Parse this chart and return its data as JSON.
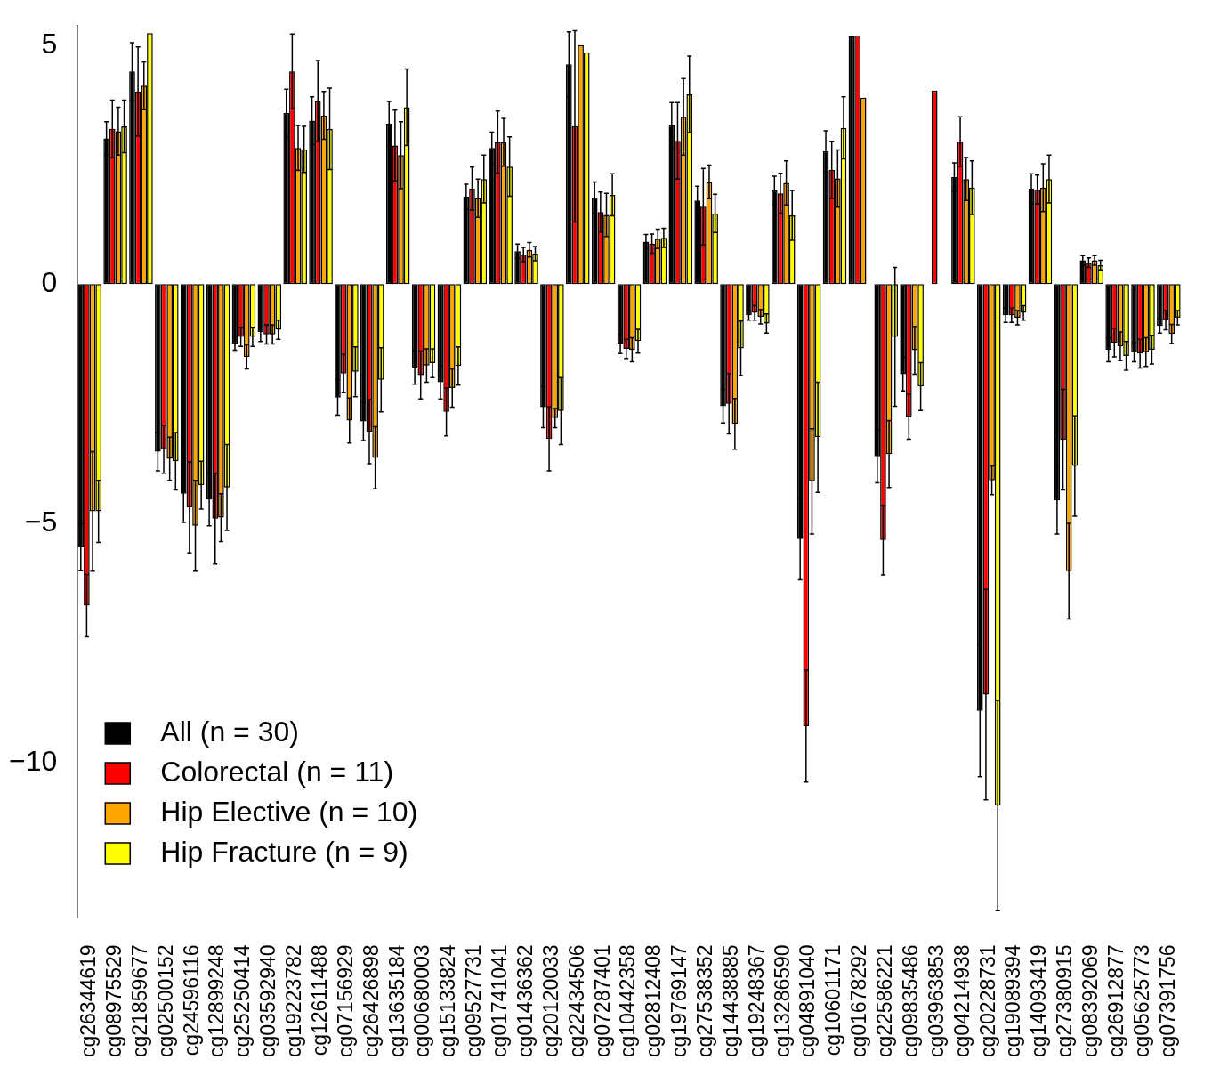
{
  "chart_data": {
    "type": "bar",
    "categories": [
      "cg26344619",
      "cg08975529",
      "cg21859677",
      "cg02500152",
      "cg24596116",
      "cg12899248",
      "cg25250414",
      "cg03592940",
      "cg19223782",
      "cg12611488",
      "cg07156929",
      "cg26426898",
      "cg13635184",
      "cg00680003",
      "cg15133824",
      "cg09527731",
      "cg01741041",
      "cg01436362",
      "cg20120033",
      "cg22434506",
      "cg07287401",
      "cg10442358",
      "cg02812408",
      "cg19769147",
      "cg27538352",
      "cg14438885",
      "cg19248367",
      "cg13286590",
      "cg04891040",
      "cg10601171",
      "cg01678292",
      "cg22586221",
      "cg09835486",
      "cg03963853",
      "cg04214938",
      "cg20228731",
      "cg19089394",
      "cg14093419",
      "cg27380915",
      "cg08392069",
      "cg26912877",
      "cg05625773",
      "cg07391756"
    ],
    "series": [
      {
        "name": "All (n = 30)",
        "color": "#000000",
        "values": [
          -5.5,
          3.05,
          4.45,
          -3.5,
          -4.38,
          -4.5,
          -1.24,
          -1.0,
          3.58,
          3.42,
          -2.37,
          -2.87,
          3.36,
          -1.74,
          -2.05,
          1.83,
          2.85,
          0.69,
          -2.57,
          4.6,
          1.81,
          -1.25,
          0.89,
          3.32,
          1.75,
          -2.55,
          -0.65,
          1.96,
          -5.33,
          2.78,
          5.19,
          -3.6,
          -1.88,
          null,
          2.24,
          -8.92,
          -0.65,
          2.0,
          -4.52,
          0.5,
          -1.37,
          -1.42,
          -0.87
        ],
        "errors": [
          0.49,
          0.35,
          0.6,
          0.4,
          0.6,
          0.55,
          0.14,
          0.2,
          0.5,
          0.5,
          0.37,
          0.4,
          0.46,
          0.35,
          0.35,
          0.26,
          0.33,
          0.15,
          0.43,
          0.68,
          0.33,
          0.2,
          0.15,
          0.48,
          0.3,
          0.35,
          0.1,
          0.3,
          0.85,
          0.43,
          null,
          0.55,
          0.35,
          null,
          0.3,
          1.38,
          0.15,
          0.31,
          0.7,
          0.1,
          0.25,
          0.2,
          0.15
        ]
      },
      {
        "name": "Colorectal (n = 11)",
        "color": "#ff0000",
        "values": [
          -6.72,
          3.25,
          4.03,
          -3.45,
          -4.67,
          -4.9,
          -1.1,
          -1.05,
          4.45,
          3.83,
          -1.87,
          -3.08,
          2.9,
          -1.9,
          -2.67,
          2.0,
          2.97,
          0.62,
          -3.23,
          3.3,
          1.51,
          -1.35,
          0.85,
          3.0,
          1.62,
          -2.5,
          -0.6,
          1.9,
          -9.24,
          2.39,
          5.2,
          -5.35,
          -2.77,
          4.05,
          2.98,
          -8.58,
          -0.65,
          1.98,
          -3.25,
          0.45,
          -1.22,
          -1.45,
          -0.75
        ],
        "errors": [
          0.65,
          0.6,
          0.93,
          0.5,
          0.95,
          0.95,
          0.2,
          0.2,
          0.78,
          0.85,
          0.4,
          0.67,
          0.74,
          0.5,
          0.5,
          0.45,
          0.65,
          0.15,
          0.67,
          2.0,
          0.42,
          0.2,
          0.2,
          0.8,
          0.8,
          0.63,
          0.15,
          0.42,
          1.17,
          0.6,
          null,
          0.73,
          0.47,
          null,
          0.52,
          2.2,
          0.15,
          0.3,
          1.05,
          0.1,
          0.3,
          0.3,
          0.2
        ]
      },
      {
        "name": "Hip Elective (n = 10)",
        "color": "#ffa500",
        "values": [
          -4.75,
          3.2,
          4.15,
          -3.65,
          -5.05,
          -4.88,
          -1.52,
          -1.05,
          2.85,
          3.53,
          -2.85,
          -3.63,
          2.7,
          -1.7,
          -2.17,
          1.8,
          2.97,
          0.72,
          -2.8,
          5.0,
          1.45,
          -1.37,
          0.95,
          3.5,
          2.14,
          -2.92,
          -0.68,
          2.12,
          -4.12,
          2.21,
          3.9,
          -3.55,
          -1.38,
          null,
          2.2,
          -4.1,
          -0.7,
          2.02,
          -6.0,
          0.5,
          -1.3,
          -1.42,
          -1.04
        ],
        "errors": [
          1.25,
          0.5,
          0.5,
          0.45,
          0.95,
          0.5,
          0.25,
          0.2,
          0.47,
          0.5,
          0.47,
          0.65,
          0.7,
          0.35,
          0.4,
          0.4,
          0.5,
          0.15,
          0.2,
          null,
          0.45,
          0.25,
          0.2,
          0.8,
          0.35,
          0.53,
          0.15,
          0.46,
          1.1,
          0.6,
          null,
          0.7,
          0.5,
          null,
          0.45,
          0.3,
          0.15,
          0.5,
          1.0,
          0.1,
          0.3,
          0.3,
          0.2
        ]
      },
      {
        "name": "Hip Fracture (n = 9)",
        "color": "#ffff00",
        "values": [
          -4.75,
          3.3,
          5.25,
          -3.7,
          -4.2,
          -4.25,
          -1.1,
          -0.95,
          2.82,
          3.25,
          -1.83,
          -2.0,
          3.7,
          -1.65,
          -1.71,
          2.2,
          2.46,
          0.64,
          -2.65,
          4.85,
          1.87,
          -1.19,
          0.97,
          3.97,
          1.48,
          -1.34,
          -0.82,
          1.44,
          -3.2,
          3.27,
          null,
          -1.1,
          -2.14,
          null,
          2.02,
          -10.9,
          -0.6,
          2.2,
          -3.8,
          0.4,
          -1.5,
          -1.37,
          -0.7
        ],
        "errors": [
          0.65,
          0.55,
          null,
          0.6,
          0.5,
          0.9,
          0.2,
          0.2,
          0.48,
          0.85,
          0.52,
          0.67,
          0.8,
          0.3,
          0.4,
          0.5,
          0.62,
          0.15,
          0.7,
          null,
          0.44,
          0.25,
          0.2,
          0.8,
          0.4,
          0.57,
          0.2,
          0.52,
          1.15,
          0.65,
          null,
          1.45,
          0.5,
          null,
          0.56,
          2.2,
          0.15,
          0.5,
          1.05,
          0.1,
          0.3,
          0.3,
          0.15
        ]
      }
    ],
    "ylim": [
      -13.25,
      5.4
    ],
    "yticks": [
      -10,
      -5,
      0,
      5
    ],
    "grid": false,
    "legend": "bottom left"
  }
}
